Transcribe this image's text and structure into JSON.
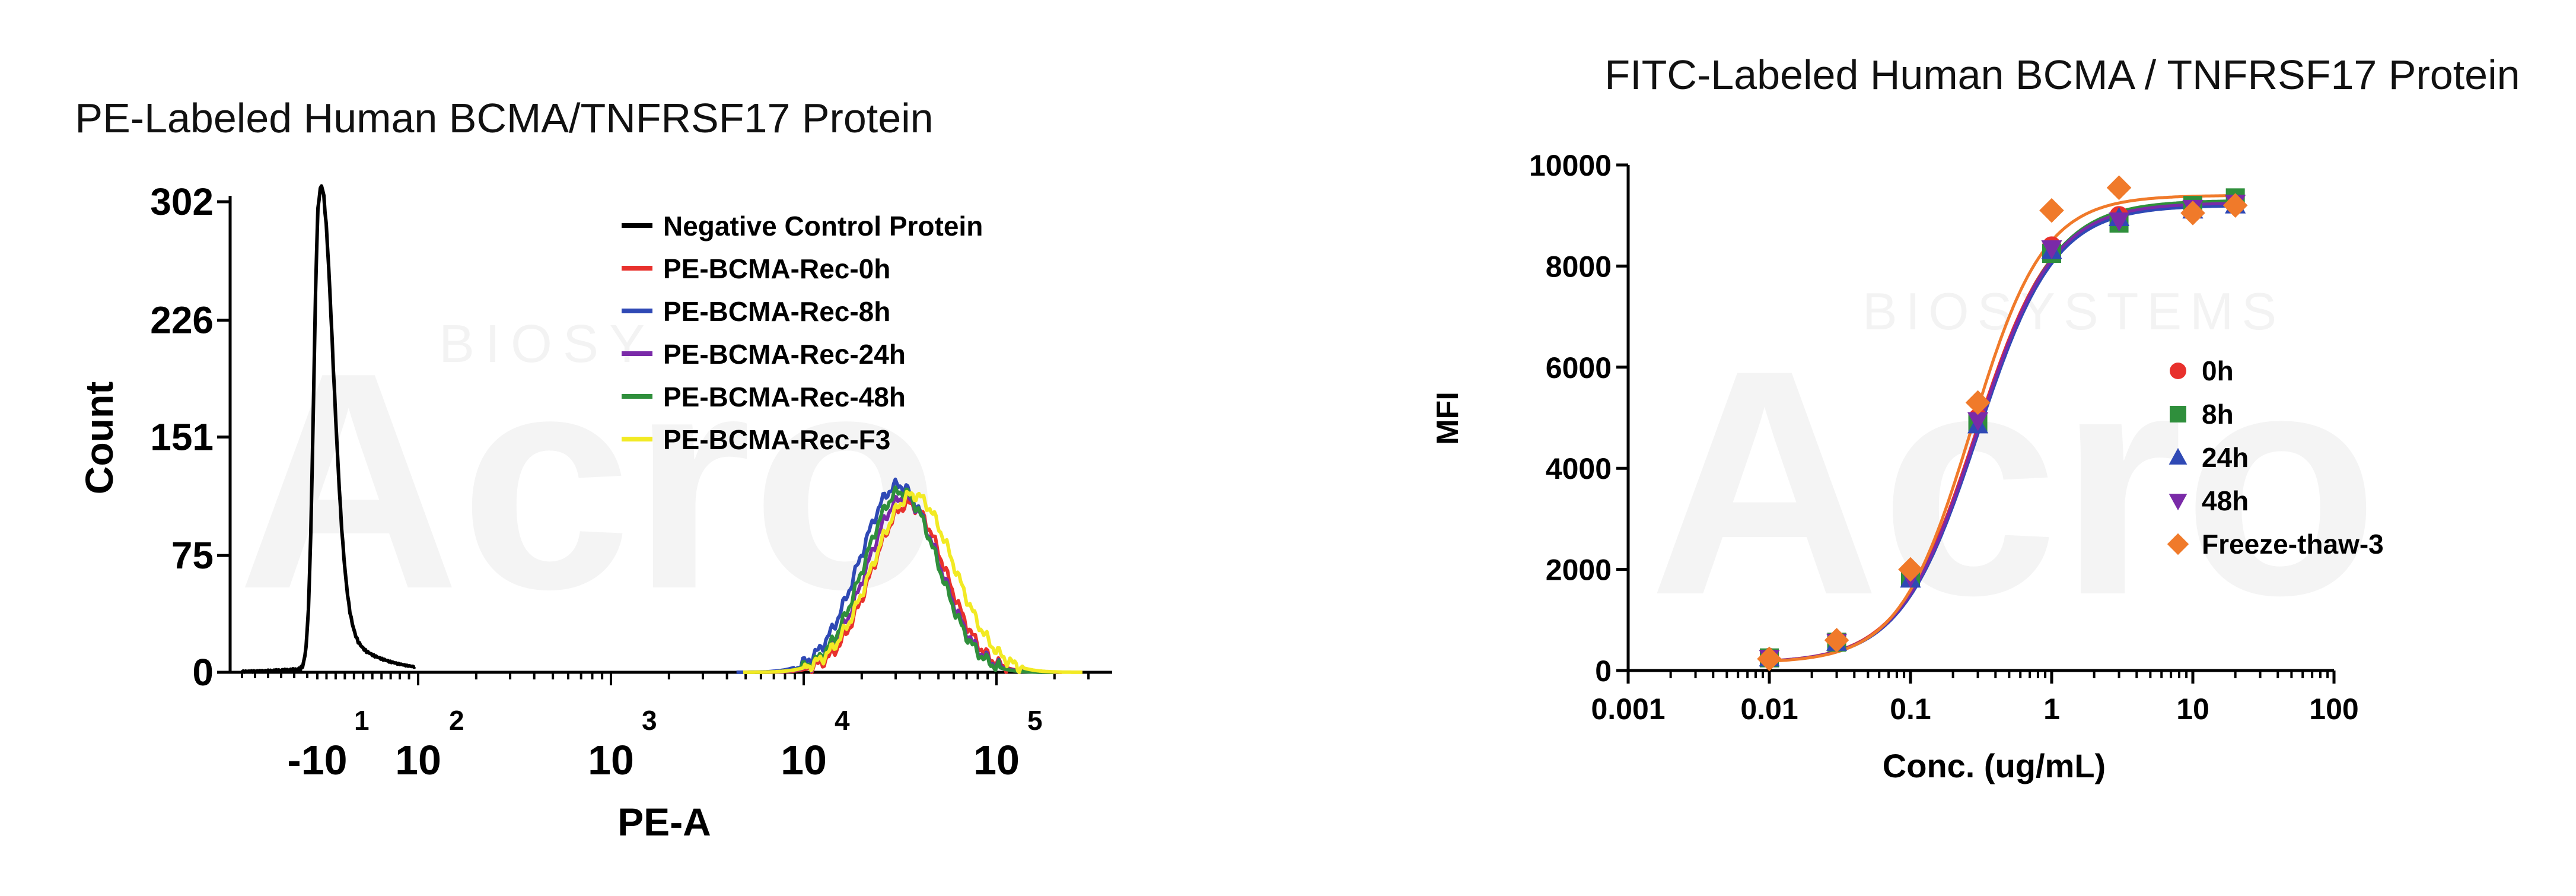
{
  "colors": {
    "black": "#000000",
    "red": "#e8312d",
    "blue": "#2f49b5",
    "purple": "#7a2aa8",
    "green": "#2f8f3c",
    "yellow": "#f2ea24",
    "orange": "#f07a2a",
    "watermark": "#f2f2f2"
  },
  "watermark": {
    "brand": "Acro",
    "sub_left": "BIOSY",
    "sub_right": "BIOSYSTEMS"
  },
  "chart_data": [
    {
      "type": "line",
      "title": "PE-Labeled Human BCMA/TNFRSF17 Protein",
      "xlabel": "PE-A",
      "ylabel": "Count",
      "x_scale": "biexponential",
      "y_ticks": [
        "0",
        "75",
        "151",
        "226",
        "302"
      ],
      "y_tick_values": [
        0,
        75,
        151,
        226,
        302
      ],
      "ylim": [
        0,
        302
      ],
      "x_ticks": [
        {
          "base": "-10",
          "exp": "1",
          "value": -10
        },
        {
          "base": "10",
          "exp": "2",
          "value": 100
        },
        {
          "base": "10",
          "exp": "3",
          "value": 1000
        },
        {
          "base": "10",
          "exp": "4",
          "value": 10000
        },
        {
          "base": "10",
          "exp": "5",
          "value": 100000
        }
      ],
      "legend_position": "top-right",
      "series": [
        {
          "name": "Negative Control Protein",
          "color": "black",
          "peak_x": -8,
          "peak_count": 302,
          "width_decades": 0.35,
          "tail": true
        },
        {
          "name": "PE-BCMA-Rec-0h",
          "color": "red",
          "peak_x": 35000,
          "peak_count": 108,
          "width_decades": 0.19
        },
        {
          "name": "PE-BCMA-Rec-8h",
          "color": "blue",
          "peak_x": 31000,
          "peak_count": 120,
          "width_decades": 0.2
        },
        {
          "name": "PE-BCMA-Rec-24h",
          "color": "purple",
          "peak_x": 33000,
          "peak_count": 112,
          "width_decades": 0.19
        },
        {
          "name": "PE-BCMA-Rec-48h",
          "color": "green",
          "peak_x": 32000,
          "peak_count": 116,
          "width_decades": 0.19
        },
        {
          "name": "PE-BCMA-Rec-F3",
          "color": "yellow",
          "peak_x": 37000,
          "peak_count": 114,
          "width_decades": 0.21
        }
      ]
    },
    {
      "type": "scatter",
      "title": "FITC-Labeled Human BCMA / TNFRSF17 Protein",
      "xlabel": "Conc. (ug/mL)",
      "ylabel": "MFI",
      "x_scale": "log",
      "xlim": [
        0.001,
        100
      ],
      "ylim": [
        0,
        10000
      ],
      "x_ticks": [
        "0.001",
        "0.01",
        "0.1",
        "1",
        "10",
        "100"
      ],
      "x_tick_values": [
        0.001,
        0.01,
        0.1,
        1,
        10,
        100
      ],
      "y_ticks": [
        "0",
        "2000",
        "4000",
        "6000",
        "8000",
        "10000"
      ],
      "y_tick_values": [
        0,
        2000,
        4000,
        6000,
        8000,
        10000
      ],
      "legend_position": "right",
      "fit": "4PL",
      "series": [
        {
          "name": "0h",
          "marker": "circle",
          "color": "red",
          "x": [
            0.01,
            0.03,
            0.1,
            0.3,
            1,
            3,
            10,
            20
          ],
          "y": [
            260,
            580,
            1900,
            5000,
            8400,
            9000,
            9150,
            9250
          ],
          "fit_params": {
            "bottom": 150,
            "top": 9250,
            "ec50": 0.29,
            "hill": 1.6
          }
        },
        {
          "name": "8h",
          "marker": "square",
          "color": "green",
          "x": [
            0.01,
            0.03,
            0.1,
            0.3,
            1,
            3,
            10,
            20
          ],
          "y": [
            250,
            560,
            1850,
            4900,
            8250,
            8850,
            9200,
            9350
          ],
          "fit_params": {
            "bottom": 150,
            "top": 9300,
            "ec50": 0.3,
            "hill": 1.6
          }
        },
        {
          "name": "24h",
          "marker": "triangle",
          "color": "blue",
          "x": [
            0.01,
            0.03,
            0.1,
            0.3,
            1,
            3,
            10,
            20
          ],
          "y": [
            240,
            550,
            1800,
            4850,
            8300,
            8950,
            9100,
            9200
          ],
          "fit_params": {
            "bottom": 150,
            "top": 9200,
            "ec50": 0.3,
            "hill": 1.6
          }
        },
        {
          "name": "48h",
          "marker": "triangle-down",
          "color": "purple",
          "x": [
            0.01,
            0.03,
            0.1,
            0.3,
            1,
            3,
            10,
            20
          ],
          "y": [
            250,
            570,
            1850,
            4950,
            8350,
            8900,
            9150,
            9250
          ],
          "fit_params": {
            "bottom": 150,
            "top": 9250,
            "ec50": 0.295,
            "hill": 1.6
          }
        },
        {
          "name": "Freeze-thaw-3",
          "marker": "diamond",
          "color": "orange",
          "x": [
            0.01,
            0.03,
            0.1,
            0.3,
            1,
            3,
            10,
            20
          ],
          "y": [
            230,
            600,
            2000,
            5300,
            9100,
            9550,
            9050,
            9200
          ],
          "fit_params": {
            "bottom": 150,
            "top": 9400,
            "ec50": 0.27,
            "hill": 1.7
          }
        }
      ]
    }
  ]
}
